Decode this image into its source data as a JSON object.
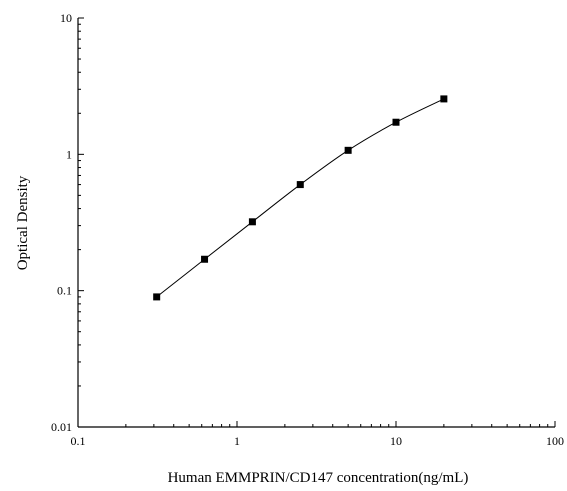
{
  "chart_data": {
    "type": "scatter",
    "xlabel": "Human EMMPRIN/CD147 concentration(ng/mL)",
    "ylabel": "Optical Density",
    "x_scale": "log",
    "y_scale": "log",
    "xlim": [
      0.1,
      100
    ],
    "ylim": [
      0.01,
      10
    ],
    "x_ticks": [
      "0.1",
      "1",
      "10",
      "100"
    ],
    "y_ticks": [
      "0.01",
      "0.1",
      "1",
      "10"
    ],
    "grid": false,
    "legend": "none",
    "series": [
      {
        "x": [
          0.3125,
          0.625,
          1.25,
          2.5,
          5,
          10,
          20
        ],
        "y": [
          0.09,
          0.17,
          0.32,
          0.6,
          1.07,
          1.72,
          2.55
        ],
        "marker": "square",
        "fit_line": true
      }
    ],
    "colors": {
      "marker": "#000000",
      "line": "#000000",
      "axis": "#000000"
    }
  }
}
